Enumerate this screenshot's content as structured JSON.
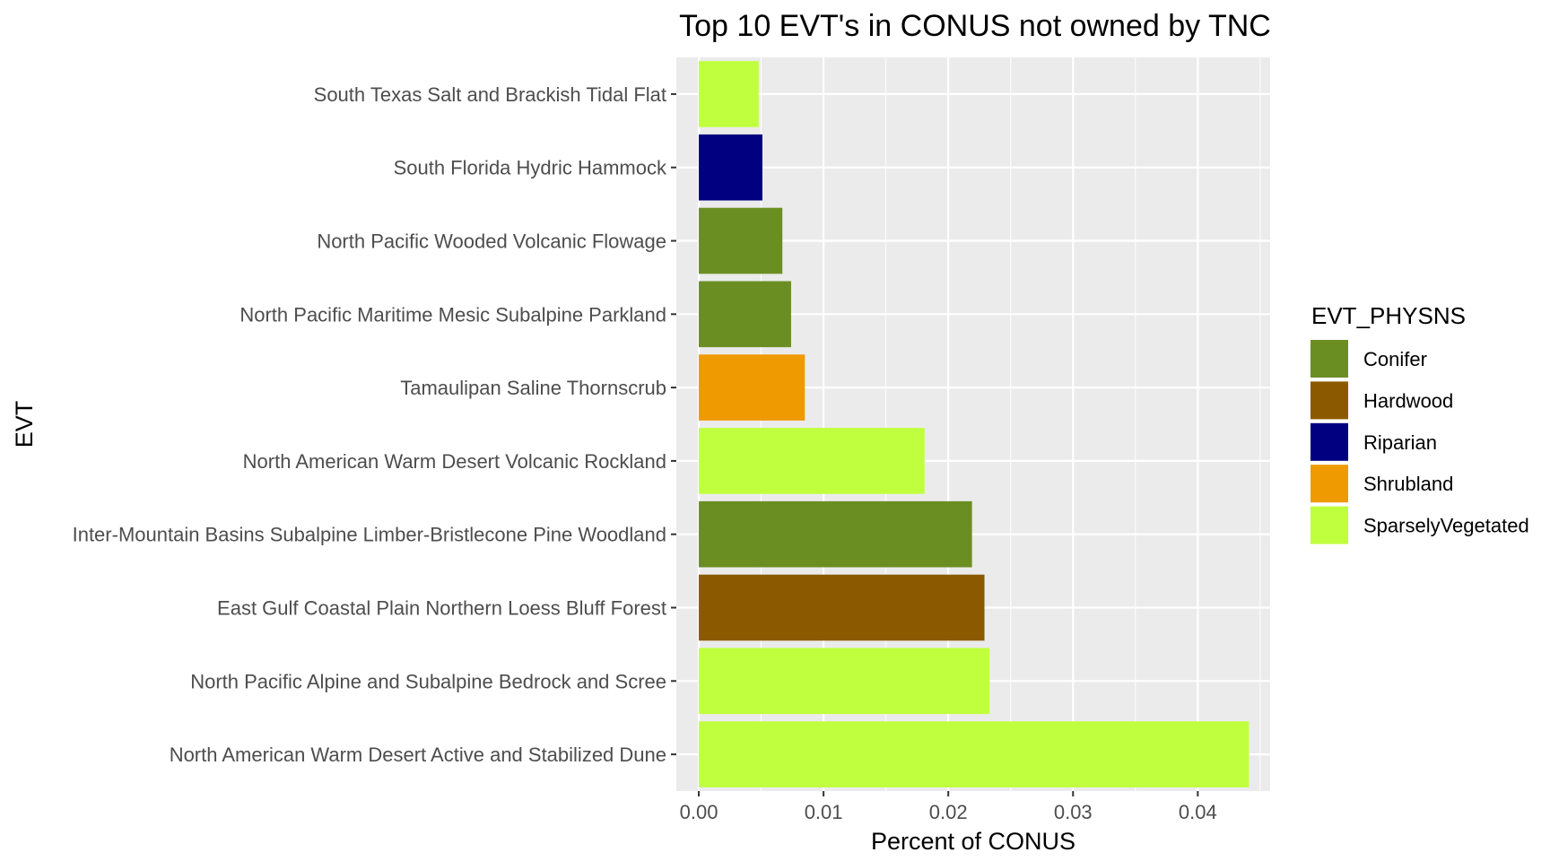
{
  "chart_data": {
    "type": "bar",
    "orientation": "horizontal",
    "title": "Top 10 EVT's in CONUS not owned by TNC",
    "xlabel": "Percent of CONUS",
    "ylabel": "EVT",
    "xlim": [
      -0.0018,
      0.0458
    ],
    "xticks": [
      "0.00",
      "0.01",
      "0.02",
      "0.03",
      "0.04"
    ],
    "xtick_values": [
      0,
      0.01,
      0.02,
      0.03,
      0.04
    ],
    "grid": true,
    "legend": {
      "title": "EVT_PHYSNS",
      "position": "right",
      "entries": [
        {
          "label": "Conifer",
          "color": "#6b8e23"
        },
        {
          "label": "Hardwood",
          "color": "#8b5a00"
        },
        {
          "label": "Riparian",
          "color": "#000080"
        },
        {
          "label": "Shrubland",
          "color": "#ee9a00"
        },
        {
          "label": "SparselyVegetated",
          "color": "#c0ff3e"
        }
      ]
    },
    "categories": [
      "South Texas Salt and Brackish Tidal Flat",
      "South Florida Hydric Hammock",
      "North Pacific Wooded Volcanic Flowage",
      "North Pacific Maritime Mesic Subalpine Parkland",
      "Tamaulipan Saline Thornscrub",
      "North American Warm Desert Volcanic Rockland",
      "Inter-Mountain Basins Subalpine Limber-Bristlecone Pine Woodland",
      "East Gulf Coastal Plain Northern Loess Bluff Forest",
      "North Pacific Alpine and Subalpine Bedrock and Scree",
      "North American Warm Desert Active and Stabilized Dune"
    ],
    "values": [
      0.0048,
      0.0051,
      0.0067,
      0.0074,
      0.0085,
      0.0181,
      0.0219,
      0.0229,
      0.0233,
      0.0441
    ],
    "groups": [
      "SparselyVegetated",
      "Riparian",
      "Conifer",
      "Conifer",
      "Shrubland",
      "SparselyVegetated",
      "Conifer",
      "Hardwood",
      "SparselyVegetated",
      "SparselyVegetated"
    ]
  }
}
